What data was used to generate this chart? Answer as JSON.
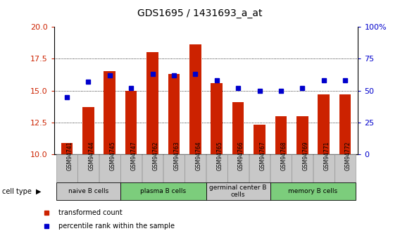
{
  "title": "GDS1695 / 1431693_a_at",
  "samples": [
    "GSM94741",
    "GSM94744",
    "GSM94745",
    "GSM94747",
    "GSM94762",
    "GSM94763",
    "GSM94764",
    "GSM94765",
    "GSM94766",
    "GSM94767",
    "GSM94768",
    "GSM94769",
    "GSM94771",
    "GSM94772"
  ],
  "transformed_count": [
    10.9,
    13.7,
    16.5,
    15.0,
    18.0,
    16.3,
    18.6,
    15.6,
    14.1,
    12.3,
    13.0,
    13.0,
    14.7,
    14.7
  ],
  "percentile_rank": [
    45,
    57,
    62,
    52,
    63,
    62,
    63,
    58,
    52,
    50,
    50,
    52,
    58,
    58
  ],
  "ylim_left": [
    10,
    20
  ],
  "ylim_right": [
    0,
    100
  ],
  "yticks_left": [
    10,
    12.5,
    15,
    17.5,
    20
  ],
  "yticks_right": [
    0,
    25,
    50,
    75,
    100
  ],
  "cell_groups": [
    {
      "label": "naive B cells",
      "start": 0,
      "end": 3,
      "color": "#c8c8c8"
    },
    {
      "label": "plasma B cells",
      "start": 3,
      "end": 7,
      "color": "#7ccd7c"
    },
    {
      "label": "germinal center B\ncells",
      "start": 7,
      "end": 10,
      "color": "#c8c8c8"
    },
    {
      "label": "memory B cells",
      "start": 10,
      "end": 14,
      "color": "#7ccd7c"
    }
  ],
  "bar_color": "#cc2200",
  "dot_color": "#0000cc",
  "left_tick_color": "#cc2200",
  "right_tick_color": "#0000cc",
  "tick_bg": "#c8c8c8",
  "grid_yticks": [
    12.5,
    15.0,
    17.5
  ]
}
